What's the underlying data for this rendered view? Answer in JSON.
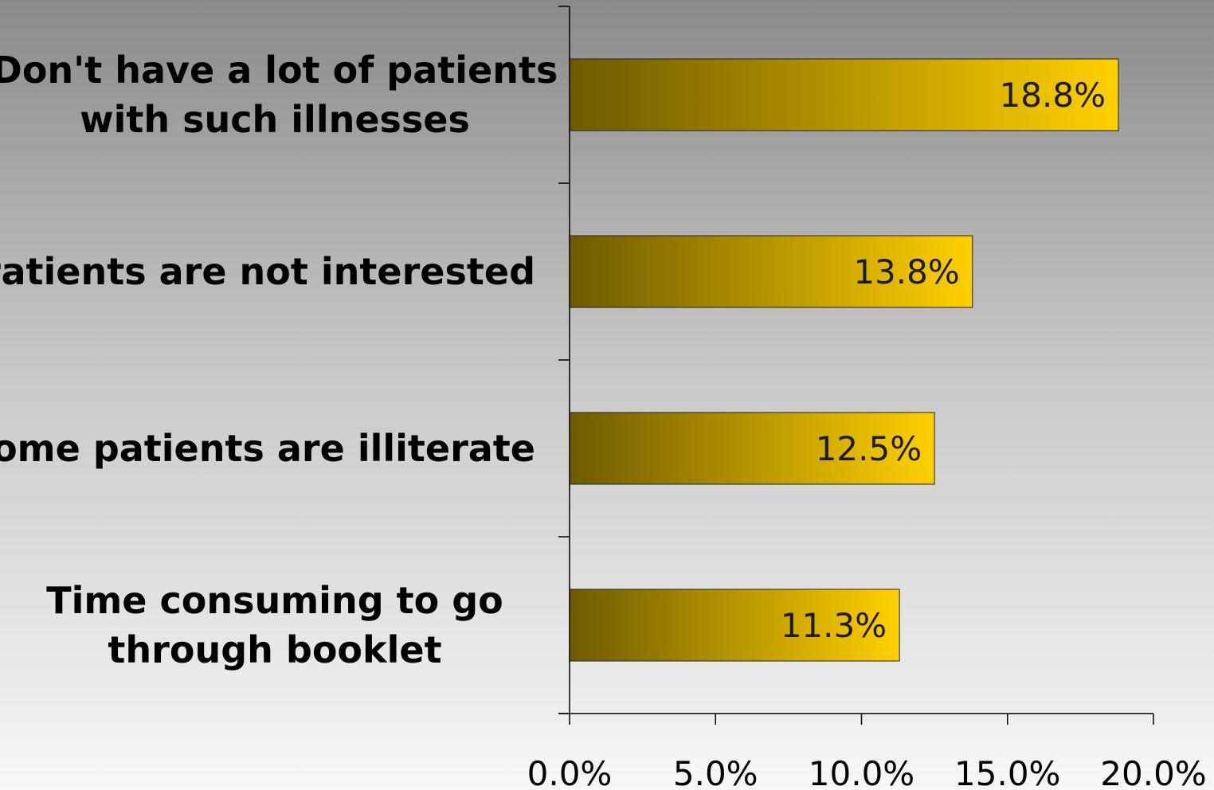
{
  "chart_data": {
    "type": "bar",
    "orientation": "horizontal",
    "categories": [
      [
        "Don't have a lot of patients",
        "with such illnesses"
      ],
      [
        "Patients are not interested"
      ],
      [
        "Some patients are illiterate"
      ],
      [
        "Time consuming to go",
        "through booklet"
      ]
    ],
    "values": [
      18.8,
      13.8,
      12.5,
      11.3
    ],
    "data_labels": [
      "18.8%",
      "13.8%",
      "12.5%",
      "11.3%"
    ],
    "xlim": [
      0,
      20
    ],
    "xticks": [
      0,
      5,
      10,
      15,
      20
    ],
    "xtick_labels": [
      "0.0%",
      "5.0%",
      "10.0%",
      "15.0%",
      "20.0%"
    ],
    "title": "",
    "xlabel": "",
    "ylabel": "",
    "grid": false,
    "legend": "none",
    "colors": {
      "bar_dark": "#6e5a00",
      "bar_light": "#ffd000",
      "axis": "#000000",
      "background_top": "#8a8a8a",
      "background_bottom": "#f7f7f7"
    }
  }
}
